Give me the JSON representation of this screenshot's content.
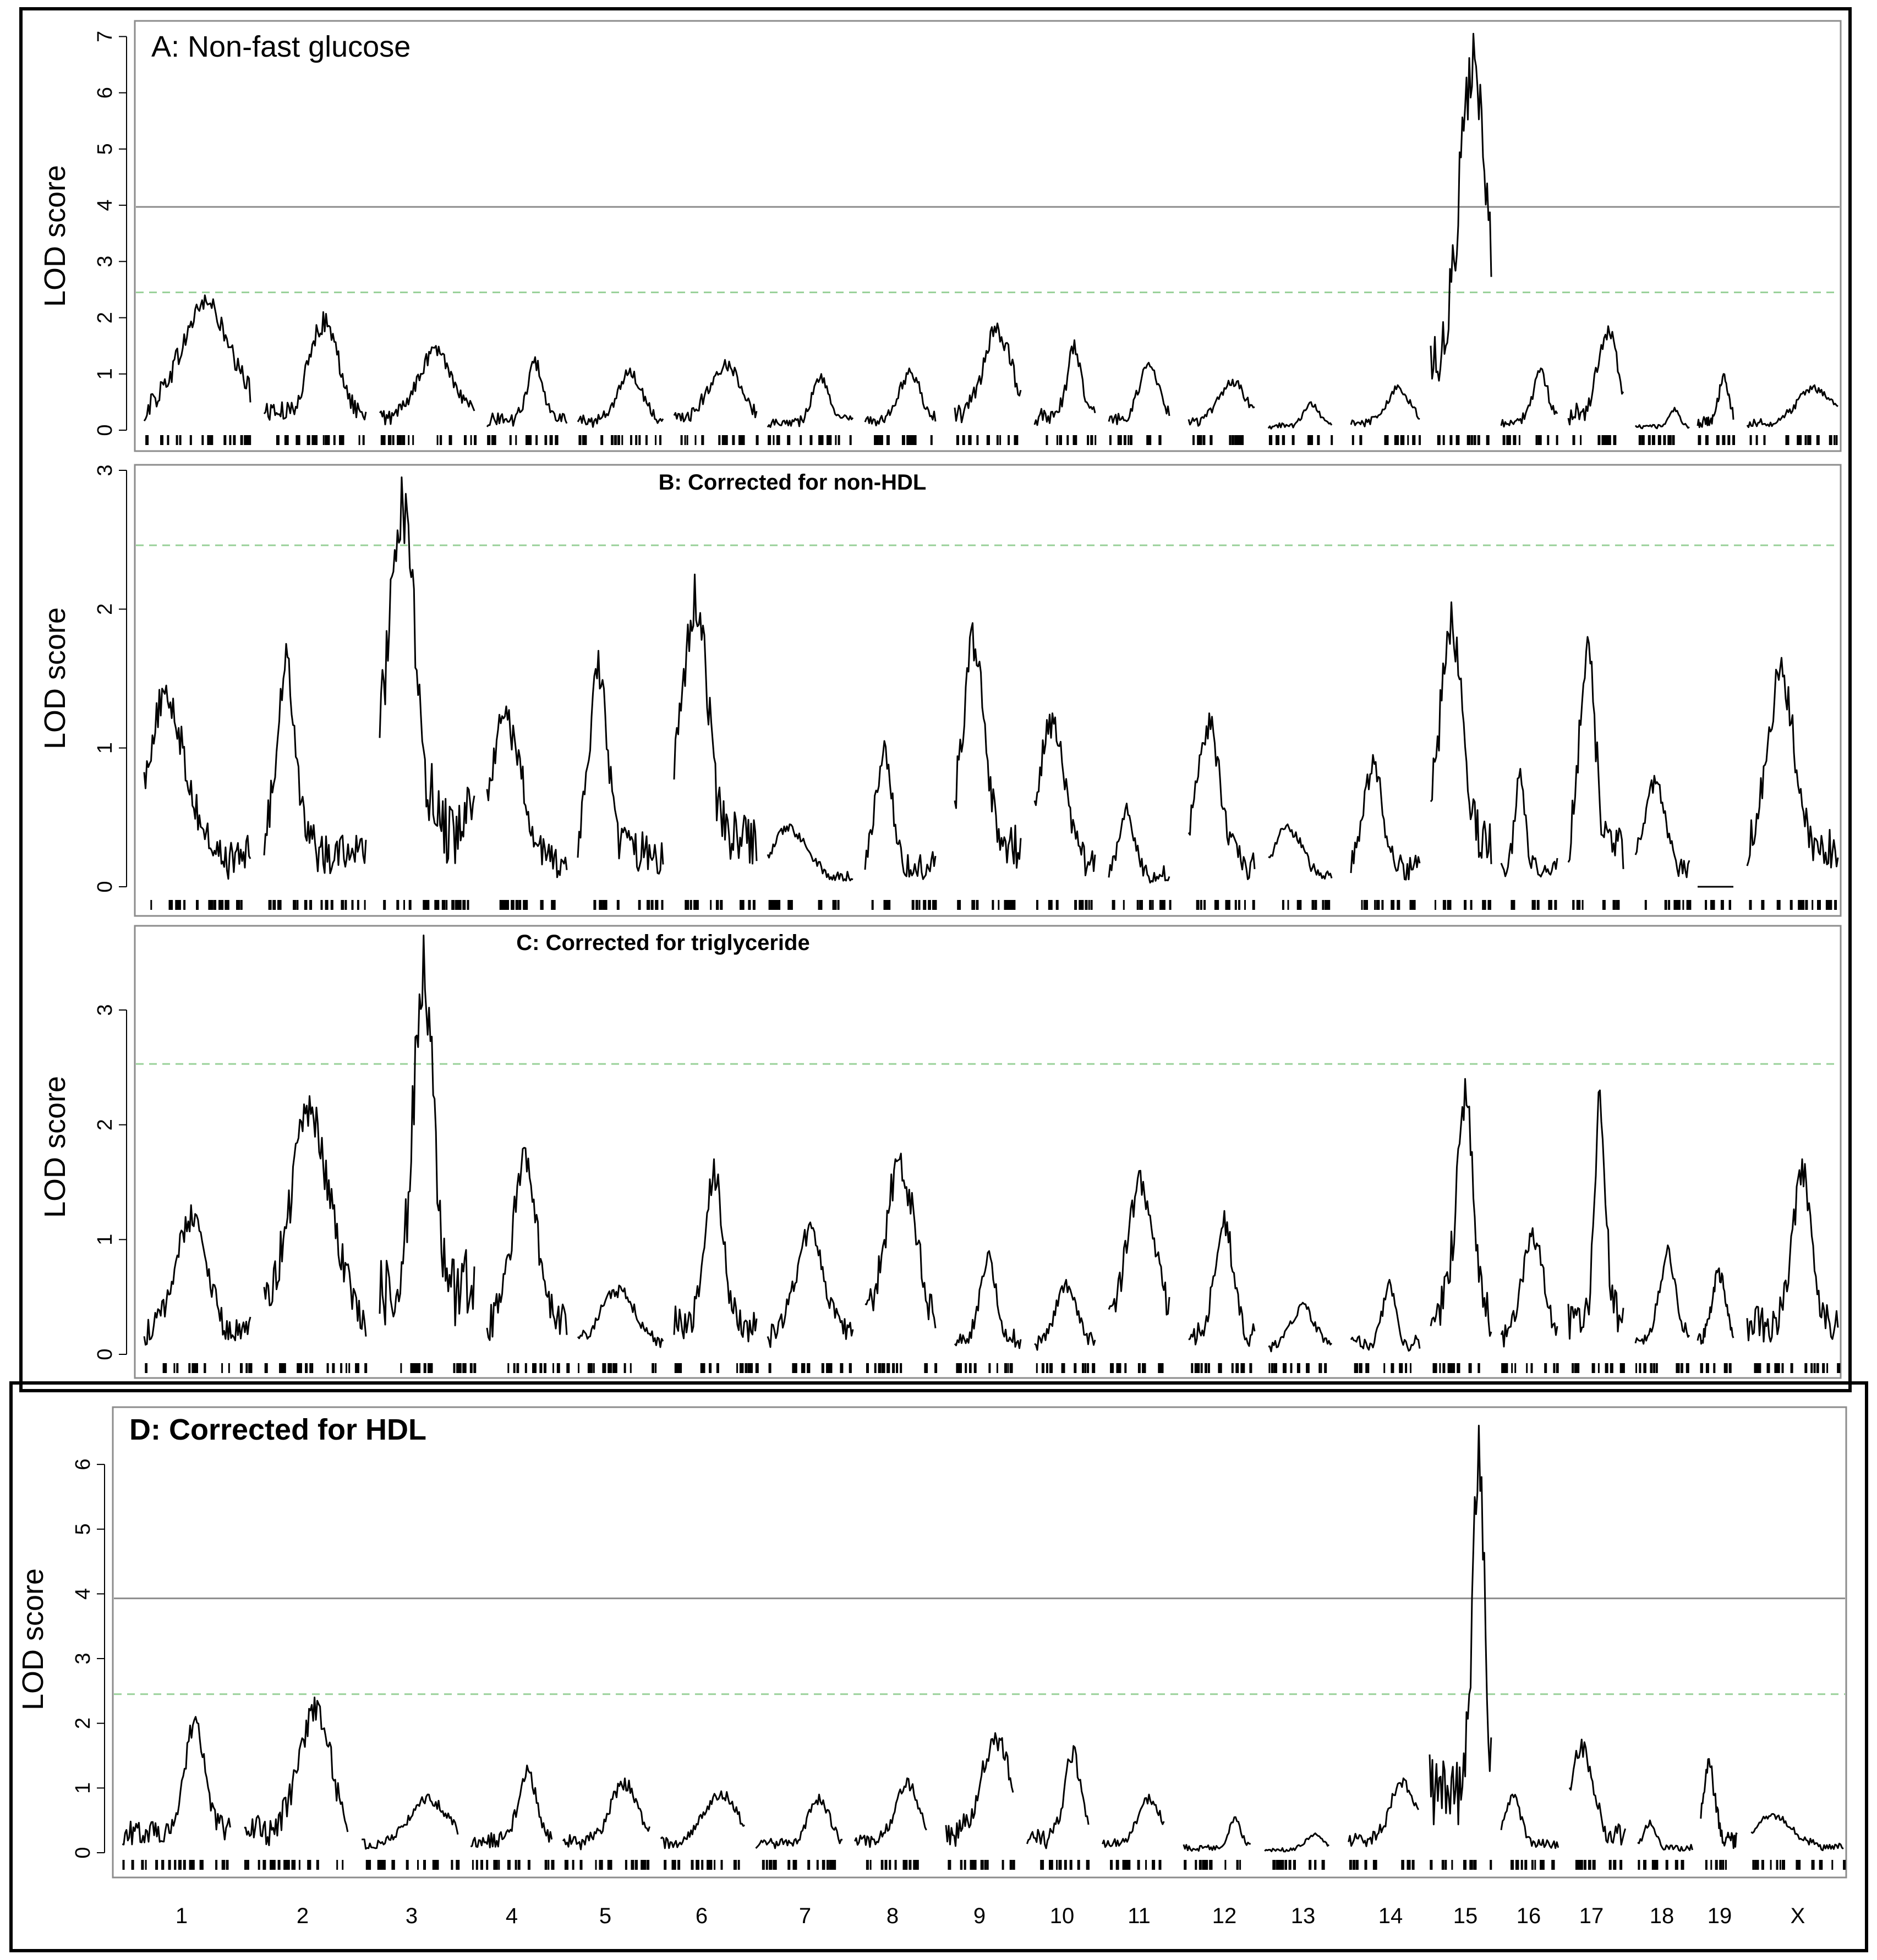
{
  "chart_data": [
    {
      "type": "line",
      "panel": "A",
      "title": "A: Non-fast glucose",
      "ylabel": "LOD score",
      "ylim": [
        0,
        7.2
      ],
      "yticks": [
        0,
        1,
        2,
        3,
        4,
        5,
        6,
        7
      ],
      "thresholds": [
        {
          "value": 3.97,
          "style": "solid",
          "color": "#8c8c8c"
        },
        {
          "value": 2.45,
          "style": "dashed",
          "color": "#9ad19a"
        }
      ],
      "chromosome_peaks": [
        2.4,
        2.1,
        1.5,
        1.3,
        1.1,
        1.25,
        1.0,
        1.1,
        1.9,
        1.6,
        1.2,
        0.9,
        0.5,
        0.8,
        7.05,
        1.1,
        1.85,
        0.4,
        1.0,
        0.8
      ]
    },
    {
      "type": "line",
      "panel": "B",
      "title": "B: Corrected for non-HDL",
      "ylabel": "LOD score",
      "ylim": [
        0,
        3.0
      ],
      "yticks": [
        0,
        1,
        2,
        3
      ],
      "thresholds": [
        {
          "value": 2.46,
          "style": "dashed",
          "color": "#9ad19a"
        }
      ],
      "chromosome_peaks": [
        1.45,
        1.75,
        2.95,
        1.3,
        1.7,
        2.25,
        0.45,
        1.05,
        1.9,
        1.25,
        0.6,
        1.25,
        0.45,
        0.95,
        2.05,
        0.85,
        1.8,
        0.8,
        0.0,
        1.65
      ]
    },
    {
      "type": "line",
      "panel": "C",
      "title": "C: Corrected for triglyceride",
      "ylabel": "LOD score",
      "ylim": [
        0,
        3.7
      ],
      "yticks": [
        0,
        1,
        2,
        3
      ],
      "thresholds": [
        {
          "value": 2.53,
          "style": "dashed",
          "color": "#9ad19a"
        }
      ],
      "chromosome_peaks": [
        1.3,
        2.25,
        3.65,
        1.8,
        0.6,
        1.7,
        1.15,
        1.75,
        0.9,
        0.65,
        1.6,
        1.25,
        0.45,
        0.65,
        2.4,
        1.1,
        2.3,
        0.95,
        0.75,
        1.7
      ]
    },
    {
      "type": "line",
      "panel": "D",
      "title": "D: Corrected for HDL",
      "ylabel": "LOD score",
      "ylim": [
        0,
        6.8
      ],
      "yticks": [
        0,
        1,
        2,
        3,
        4,
        5,
        6
      ],
      "thresholds": [
        {
          "value": 3.93,
          "style": "solid",
          "color": "#8c8c8c"
        },
        {
          "value": 2.45,
          "style": "dashed",
          "color": "#9ad19a"
        }
      ],
      "chromosome_peaks": [
        2.1,
        2.4,
        0.9,
        1.35,
        1.15,
        0.95,
        0.9,
        1.15,
        1.85,
        1.65,
        0.9,
        0.55,
        0.3,
        1.15,
        6.6,
        0.9,
        1.75,
        0.5,
        1.45,
        0.6
      ]
    }
  ],
  "chromosomes": [
    "1",
    "2",
    "3",
    "4",
    "5",
    "6",
    "7",
    "8",
    "9",
    "10",
    "11",
    "12",
    "13",
    "14",
    "15",
    "16",
    "17",
    "18",
    "19",
    "X"
  ],
  "colors": {
    "curve": "#000000",
    "frame": "#8c8c8c",
    "significant": "#8c8c8c",
    "suggestive": "#9ad19a"
  }
}
